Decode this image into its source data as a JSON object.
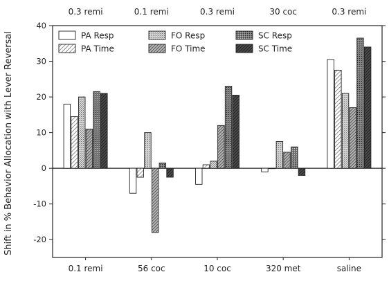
{
  "chart_data": {
    "type": "bar",
    "title": "",
    "xlabel": "",
    "ylabel": "Shift in % Behavior Allocation with Lever Reversal",
    "ylim": [
      -25,
      40
    ],
    "yticks": [
      -20,
      -10,
      0,
      10,
      20,
      30,
      40
    ],
    "grid": false,
    "legend_position": "top-left",
    "categories": [
      "0.1 remi",
      "56 coc",
      "10 coc",
      "320 met",
      "saline"
    ],
    "top_labels": [
      "0.3 remi",
      "0.1 remi",
      "0.3 remi",
      "30 coc",
      "0.3 remi"
    ],
    "series": [
      {
        "name": "PA Resp",
        "values": [
          18,
          -7,
          -4.5,
          -1,
          30.5
        ],
        "fill": "#ffffff",
        "pattern": "none"
      },
      {
        "name": "PA Time",
        "values": [
          14.5,
          -2.5,
          1,
          0,
          27.5
        ],
        "fill": "#ffffff",
        "pattern": "hatch-light"
      },
      {
        "name": "FO Resp",
        "values": [
          20,
          10,
          2,
          7.5,
          21
        ],
        "fill": "#c8c8c8",
        "pattern": "stipple"
      },
      {
        "name": "FO Time",
        "values": [
          11,
          -18,
          12,
          4.5,
          17
        ],
        "fill": "#9a9a9a",
        "pattern": "hatch-dense"
      },
      {
        "name": "SC Resp",
        "values": [
          21.5,
          1.5,
          23,
          6,
          36.5
        ],
        "fill": "#777777",
        "pattern": "stipple-dark"
      },
      {
        "name": "SC Time",
        "values": [
          21,
          -2.5,
          20.5,
          -2,
          34
        ],
        "fill": "#444444",
        "pattern": "hatch-dark"
      }
    ]
  }
}
